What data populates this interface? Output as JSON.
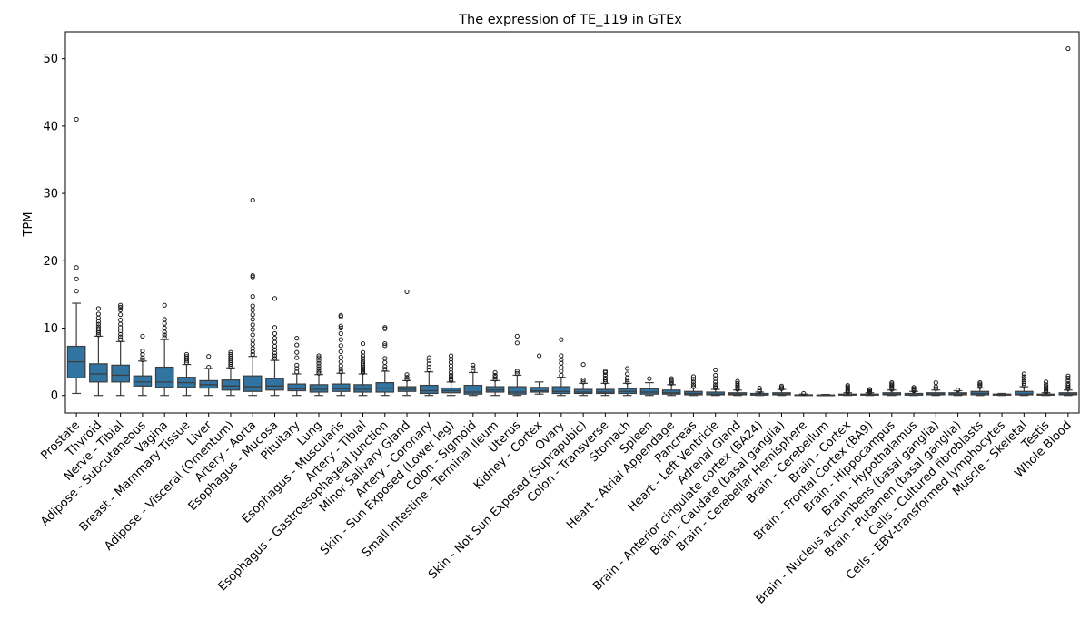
{
  "chart_data": {
    "type": "box",
    "title": "The expression of TE_119 in GTEx",
    "xlabel": "",
    "ylabel": "TPM",
    "ylim": [
      -2.6,
      54
    ],
    "yticks": [
      0,
      10,
      20,
      30,
      40,
      50
    ],
    "grid": false,
    "legend": "none",
    "box_color": "#3274a1",
    "categories": [
      "Prostate",
      "Thyroid",
      "Nerve - Tibial",
      "Adipose - Subcutaneous",
      "Vagina",
      "Breast - Mammary Tissue",
      "Liver",
      "Adipose - Visceral (Omentum)",
      "Artery - Aorta",
      "Esophagus - Mucosa",
      "Pituitary",
      "Lung",
      "Esophagus - Muscularis",
      "Artery - Tibial",
      "Esophagus - Gastroesophageal Junction",
      "Minor Salivary Gland",
      "Artery - Coronary",
      "Skin - Sun Exposed (Lower leg)",
      "Colon - Sigmoid",
      "Small Intestine - Terminal Ileum",
      "Uterus",
      "Kidney - Cortex",
      "Ovary",
      "Skin - Not Sun Exposed (Suprapubic)",
      "Colon - Transverse",
      "Stomach",
      "Spleen",
      "Heart - Atrial Appendage",
      "Pancreas",
      "Heart - Left Ventricle",
      "Adrenal Gland",
      "Brain - Anterior cingulate cortex (BA24)",
      "Brain - Caudate (basal ganglia)",
      "Brain - Cerebellar Hemisphere",
      "Brain - Cerebellum",
      "Brain - Cortex",
      "Brain - Frontal Cortex (BA9)",
      "Brain - Hippocampus",
      "Brain - Hypothalamus",
      "Brain - Nucleus accumbens (basal ganglia)",
      "Brain - Putamen (basal ganglia)",
      "Cells - Cultured fibroblasts",
      "Cells - EBV-transformed lymphocytes",
      "Muscle - Skeletal",
      "Testis",
      "Whole Blood"
    ],
    "boxes": [
      {
        "whislo": 0.3,
        "q1": 2.6,
        "med": 5.0,
        "q3": 7.3,
        "whishi": 13.7,
        "fliers": [
          15.5,
          17.3,
          19.0,
          41.0
        ]
      },
      {
        "whislo": 0.0,
        "q1": 2.0,
        "med": 3.2,
        "q3": 4.7,
        "whishi": 8.8,
        "fliers": [
          9.0,
          9.3,
          9.6,
          9.9,
          10.2,
          10.6,
          11.0,
          11.5,
          12.1,
          12.9
        ]
      },
      {
        "whislo": 0.0,
        "q1": 2.0,
        "med": 3.0,
        "q3": 4.5,
        "whishi": 8.0,
        "fliers": [
          8.3,
          8.7,
          9.1,
          9.6,
          10.1,
          10.6,
          11.2,
          12.0,
          12.7,
          13.1,
          13.4
        ]
      },
      {
        "whislo": 0.0,
        "q1": 1.4,
        "med": 2.0,
        "q3": 2.9,
        "whishi": 5.1,
        "fliers": [
          5.3,
          5.6,
          6.1,
          6.6,
          8.8
        ]
      },
      {
        "whislo": 0.0,
        "q1": 1.2,
        "med": 2.0,
        "q3": 4.2,
        "whishi": 8.3,
        "fliers": [
          8.6,
          9.0,
          9.4,
          10.0,
          10.7,
          11.3,
          13.4
        ]
      },
      {
        "whislo": 0.0,
        "q1": 1.2,
        "med": 1.9,
        "q3": 2.7,
        "whishi": 4.6,
        "fliers": [
          4.9,
          5.2,
          5.5,
          5.8,
          6.1
        ]
      },
      {
        "whislo": 0.0,
        "q1": 1.1,
        "med": 1.6,
        "q3": 2.2,
        "whishi": 4.0,
        "fliers": [
          4.2,
          5.8
        ]
      },
      {
        "whislo": 0.0,
        "q1": 0.8,
        "med": 1.4,
        "q3": 2.3,
        "whishi": 4.1,
        "fliers": [
          4.3,
          4.6,
          4.9,
          5.2,
          5.5,
          5.8,
          6.1,
          6.4
        ]
      },
      {
        "whislo": 0.0,
        "q1": 0.6,
        "med": 1.3,
        "q3": 2.9,
        "whishi": 5.8,
        "fliers": [
          6.1,
          6.5,
          7.0,
          7.6,
          8.2,
          9.0,
          9.8,
          10.5,
          11.3,
          12.0,
          12.7,
          13.3,
          14.7,
          17.6,
          17.8,
          29.0
        ]
      },
      {
        "whislo": 0.0,
        "q1": 0.8,
        "med": 1.4,
        "q3": 2.5,
        "whishi": 5.2,
        "fliers": [
          5.5,
          5.9,
          6.3,
          6.8,
          7.3,
          7.9,
          8.5,
          9.2,
          10.1,
          14.4
        ]
      },
      {
        "whislo": 0.0,
        "q1": 0.7,
        "med": 1.0,
        "q3": 1.7,
        "whishi": 3.2,
        "fliers": [
          3.5,
          4.0,
          4.5,
          5.6,
          6.4,
          7.5,
          8.5
        ]
      },
      {
        "whislo": 0.0,
        "q1": 0.5,
        "med": 0.9,
        "q3": 1.6,
        "whishi": 3.1,
        "fliers": [
          3.3,
          3.6,
          4.0,
          4.4,
          4.8,
          5.2,
          5.6,
          5.9
        ]
      },
      {
        "whislo": 0.0,
        "q1": 0.6,
        "med": 1.0,
        "q3": 1.7,
        "whishi": 3.3,
        "fliers": [
          3.5,
          3.9,
          4.4,
          5.0,
          5.7,
          6.5,
          7.4,
          8.3,
          9.2,
          10.0,
          10.3,
          11.7,
          11.9
        ]
      },
      {
        "whislo": 0.0,
        "q1": 0.5,
        "med": 0.9,
        "q3": 1.6,
        "whishi": 3.2,
        "fliers": [
          3.4,
          3.6,
          3.8,
          4.0,
          4.2,
          4.5,
          4.8,
          5.1,
          5.5,
          5.9,
          6.4,
          7.7
        ]
      },
      {
        "whislo": 0.0,
        "q1": 0.5,
        "med": 1.1,
        "q3": 1.9,
        "whishi": 3.6,
        "fliers": [
          3.9,
          4.3,
          4.9,
          5.5,
          7.4,
          7.7,
          9.9,
          10.1
        ]
      },
      {
        "whislo": 0.0,
        "q1": 0.6,
        "med": 0.9,
        "q3": 1.3,
        "whishi": 2.2,
        "fliers": [
          2.4,
          2.7,
          3.1,
          15.4
        ]
      },
      {
        "whislo": 0.0,
        "q1": 0.3,
        "med": 0.7,
        "q3": 1.5,
        "whishi": 3.5,
        "fliers": [
          3.8,
          4.2,
          4.7,
          5.2,
          5.6
        ]
      },
      {
        "whislo": 0.0,
        "q1": 0.4,
        "med": 0.7,
        "q3": 1.1,
        "whishi": 2.0,
        "fliers": [
          2.2,
          2.4,
          2.7,
          3.0,
          3.4,
          3.9,
          4.4,
          4.9,
          5.4,
          5.9
        ]
      },
      {
        "whislo": 0.0,
        "q1": 0.2,
        "med": 0.5,
        "q3": 1.5,
        "whishi": 3.4,
        "fliers": [
          3.7,
          4.1,
          4.5
        ]
      },
      {
        "whislo": 0.0,
        "q1": 0.5,
        "med": 0.8,
        "q3": 1.3,
        "whishi": 2.2,
        "fliers": [
          2.4,
          2.7,
          3.0,
          3.4
        ]
      },
      {
        "whislo": 0.0,
        "q1": 0.2,
        "med": 0.5,
        "q3": 1.3,
        "whishi": 3.0,
        "fliers": [
          3.3,
          3.6,
          7.8,
          8.8
        ]
      },
      {
        "whislo": 0.2,
        "q1": 0.5,
        "med": 0.7,
        "q3": 1.2,
        "whishi": 2.0,
        "fliers": [
          5.9
        ]
      },
      {
        "whislo": 0.0,
        "q1": 0.3,
        "med": 0.6,
        "q3": 1.3,
        "whishi": 2.7,
        "fliers": [
          3.0,
          3.6,
          4.2,
          4.8,
          5.3,
          5.9,
          8.3
        ]
      },
      {
        "whislo": 0.0,
        "q1": 0.3,
        "med": 0.5,
        "q3": 0.9,
        "whishi": 1.8,
        "fliers": [
          2.0,
          2.3,
          4.6
        ]
      },
      {
        "whislo": 0.0,
        "q1": 0.3,
        "med": 0.5,
        "q3": 0.9,
        "whishi": 1.8,
        "fliers": [
          2.0,
          2.3,
          2.6,
          3.0,
          3.4,
          3.6
        ]
      },
      {
        "whislo": 0.0,
        "q1": 0.3,
        "med": 0.6,
        "q3": 1.0,
        "whishi": 1.8,
        "fliers": [
          2.0,
          2.3,
          2.6,
          3.2,
          4.0
        ]
      },
      {
        "whislo": 0.0,
        "q1": 0.2,
        "med": 0.5,
        "q3": 1.0,
        "whishi": 1.9,
        "fliers": [
          2.5
        ]
      },
      {
        "whislo": 0.0,
        "q1": 0.2,
        "med": 0.4,
        "q3": 0.8,
        "whishi": 1.6,
        "fliers": [
          1.8,
          2.0,
          2.2,
          2.5
        ]
      },
      {
        "whislo": 0.0,
        "q1": 0.1,
        "med": 0.3,
        "q3": 0.6,
        "whishi": 1.1,
        "fliers": [
          1.3,
          1.6,
          2.0,
          2.4,
          2.8
        ]
      },
      {
        "whislo": 0.0,
        "q1": 0.1,
        "med": 0.2,
        "q3": 0.5,
        "whishi": 0.9,
        "fliers": [
          1.1,
          1.3,
          1.6,
          2.0,
          2.5,
          3.0,
          3.8
        ]
      },
      {
        "whislo": 0.0,
        "q1": 0.1,
        "med": 0.2,
        "q3": 0.4,
        "whishi": 0.8,
        "fliers": [
          0.9,
          1.1,
          1.3,
          1.5,
          1.8,
          2.1
        ]
      },
      {
        "whislo": 0.0,
        "q1": 0.05,
        "med": 0.1,
        "q3": 0.3,
        "whishi": 0.5,
        "fliers": [
          0.6,
          0.8,
          1.1
        ]
      },
      {
        "whislo": 0.0,
        "q1": 0.1,
        "med": 0.2,
        "q3": 0.4,
        "whishi": 0.9,
        "fliers": [
          1.0,
          1.2,
          1.4
        ]
      },
      {
        "whislo": 0.0,
        "q1": 0.02,
        "med": 0.05,
        "q3": 0.1,
        "whishi": 0.2,
        "fliers": [
          0.3
        ]
      },
      {
        "whislo": 0.0,
        "q1": 0.02,
        "med": 0.04,
        "q3": 0.08,
        "whishi": 0.15,
        "fliers": []
      },
      {
        "whislo": 0.0,
        "q1": 0.05,
        "med": 0.1,
        "q3": 0.2,
        "whishi": 0.4,
        "fliers": [
          0.5,
          0.7,
          0.9,
          1.1,
          1.3,
          1.5
        ]
      },
      {
        "whislo": 0.0,
        "q1": 0.05,
        "med": 0.1,
        "q3": 0.2,
        "whishi": 0.4,
        "fliers": [
          0.5,
          0.6,
          0.8,
          0.9
        ]
      },
      {
        "whislo": 0.0,
        "q1": 0.1,
        "med": 0.2,
        "q3": 0.4,
        "whishi": 0.8,
        "fliers": [
          0.9,
          1.1,
          1.3,
          1.5,
          1.7,
          1.9
        ]
      },
      {
        "whislo": 0.0,
        "q1": 0.05,
        "med": 0.1,
        "q3": 0.3,
        "whishi": 0.6,
        "fliers": [
          0.7,
          0.8,
          1.0,
          1.2
        ]
      },
      {
        "whislo": 0.0,
        "q1": 0.1,
        "med": 0.2,
        "q3": 0.4,
        "whishi": 0.8,
        "fliers": [
          1.0,
          1.3,
          1.9
        ]
      },
      {
        "whislo": 0.0,
        "q1": 0.1,
        "med": 0.2,
        "q3": 0.4,
        "whishi": 0.7,
        "fliers": [
          0.8
        ]
      },
      {
        "whislo": 0.0,
        "q1": 0.1,
        "med": 0.3,
        "q3": 0.6,
        "whishi": 1.1,
        "fliers": [
          1.3,
          1.5,
          1.7,
          1.9
        ]
      },
      {
        "whislo": 0.0,
        "q1": 0.05,
        "med": 0.1,
        "q3": 0.2,
        "whishi": 0.3,
        "fliers": []
      },
      {
        "whislo": 0.0,
        "q1": 0.1,
        "med": 0.2,
        "q3": 0.6,
        "whishi": 1.3,
        "fliers": [
          1.5,
          1.8,
          2.1,
          2.5,
          2.8,
          3.2
        ]
      },
      {
        "whislo": 0.0,
        "q1": 0.05,
        "med": 0.1,
        "q3": 0.2,
        "whishi": 0.4,
        "fliers": [
          0.5,
          0.7,
          0.9,
          1.1,
          1.3,
          1.6,
          2.0
        ]
      },
      {
        "whislo": 0.0,
        "q1": 0.1,
        "med": 0.2,
        "q3": 0.4,
        "whishi": 0.8,
        "fliers": [
          1.0,
          1.2,
          1.5,
          1.8,
          2.2,
          2.6,
          2.9,
          51.5
        ]
      }
    ]
  }
}
